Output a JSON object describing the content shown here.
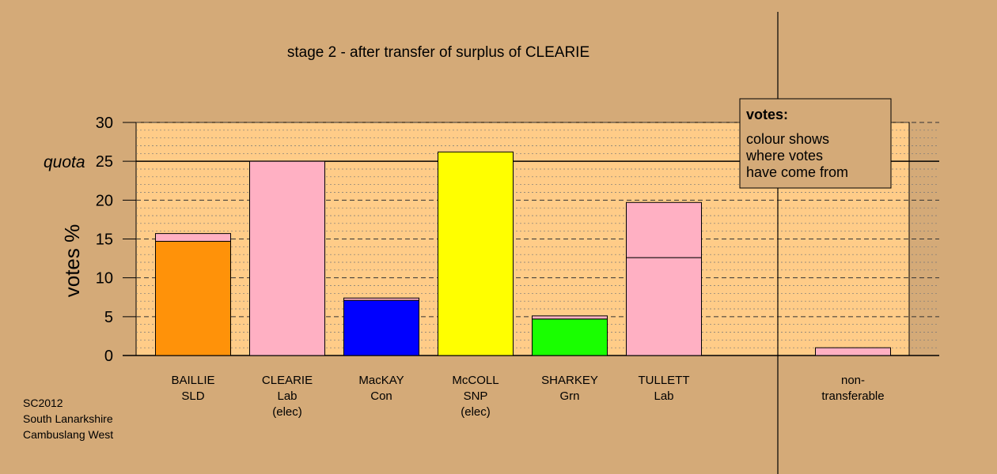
{
  "chart_data": {
    "type": "bar",
    "title": "stage 2 - after transfer of surplus of CLEARIE",
    "ylabel": "votes %",
    "ylim": [
      0,
      30
    ],
    "yticks": [
      0,
      5,
      10,
      15,
      20,
      25,
      30
    ],
    "quota": {
      "value": 25,
      "label": "quota"
    },
    "categories": [
      {
        "lines": [
          "BAILLIE",
          "SLD"
        ]
      },
      {
        "lines": [
          "CLEARIE",
          "Lab",
          "(elec)"
        ]
      },
      {
        "lines": [
          "MacKAY",
          "Con"
        ]
      },
      {
        "lines": [
          "McCOLL",
          "SNP",
          "(elec)"
        ]
      },
      {
        "lines": [
          "SHARKEY",
          "Grn"
        ]
      },
      {
        "lines": [
          "TULLETT",
          "Lab"
        ]
      },
      {
        "lines": [
          "non-",
          "transferable"
        ]
      }
    ],
    "bars": [
      {
        "segments": [
          {
            "value": 14.7,
            "color": "#ff9209"
          },
          {
            "value": 1.0,
            "color": "#ffb0c3"
          }
        ]
      },
      {
        "segments": [
          {
            "value": 25.0,
            "color": "#ffb0c3"
          }
        ]
      },
      {
        "segments": [
          {
            "value": 7.1,
            "color": "#0000ff"
          },
          {
            "value": 0.3,
            "color": "#ffb0c3"
          }
        ]
      },
      {
        "segments": [
          {
            "value": 26.2,
            "color": "#ffff00"
          }
        ]
      },
      {
        "segments": [
          {
            "value": 4.7,
            "color": "#19ff00"
          },
          {
            "value": 0.4,
            "color": "#ffb0c3"
          }
        ]
      },
      {
        "segments": [
          {
            "value": 12.6,
            "color": "#ffb0c3"
          },
          {
            "value": 7.1,
            "color": "#ffb0c3"
          }
        ]
      },
      {
        "segments": [
          {
            "value": 1.0,
            "color": "#ffb0c3"
          }
        ]
      }
    ],
    "legend": {
      "title": "votes:",
      "lines": [
        "colour shows",
        "where votes",
        "have come from"
      ],
      "placement": "top-right"
    },
    "colors": {
      "background": "#d4aa78",
      "plot_area": "#ffcc88",
      "party_lab": "#ffb0c3"
    }
  },
  "footer": {
    "line1": "SC2012",
    "line2": "South Lanarkshire",
    "line3": "Cambuslang West"
  }
}
